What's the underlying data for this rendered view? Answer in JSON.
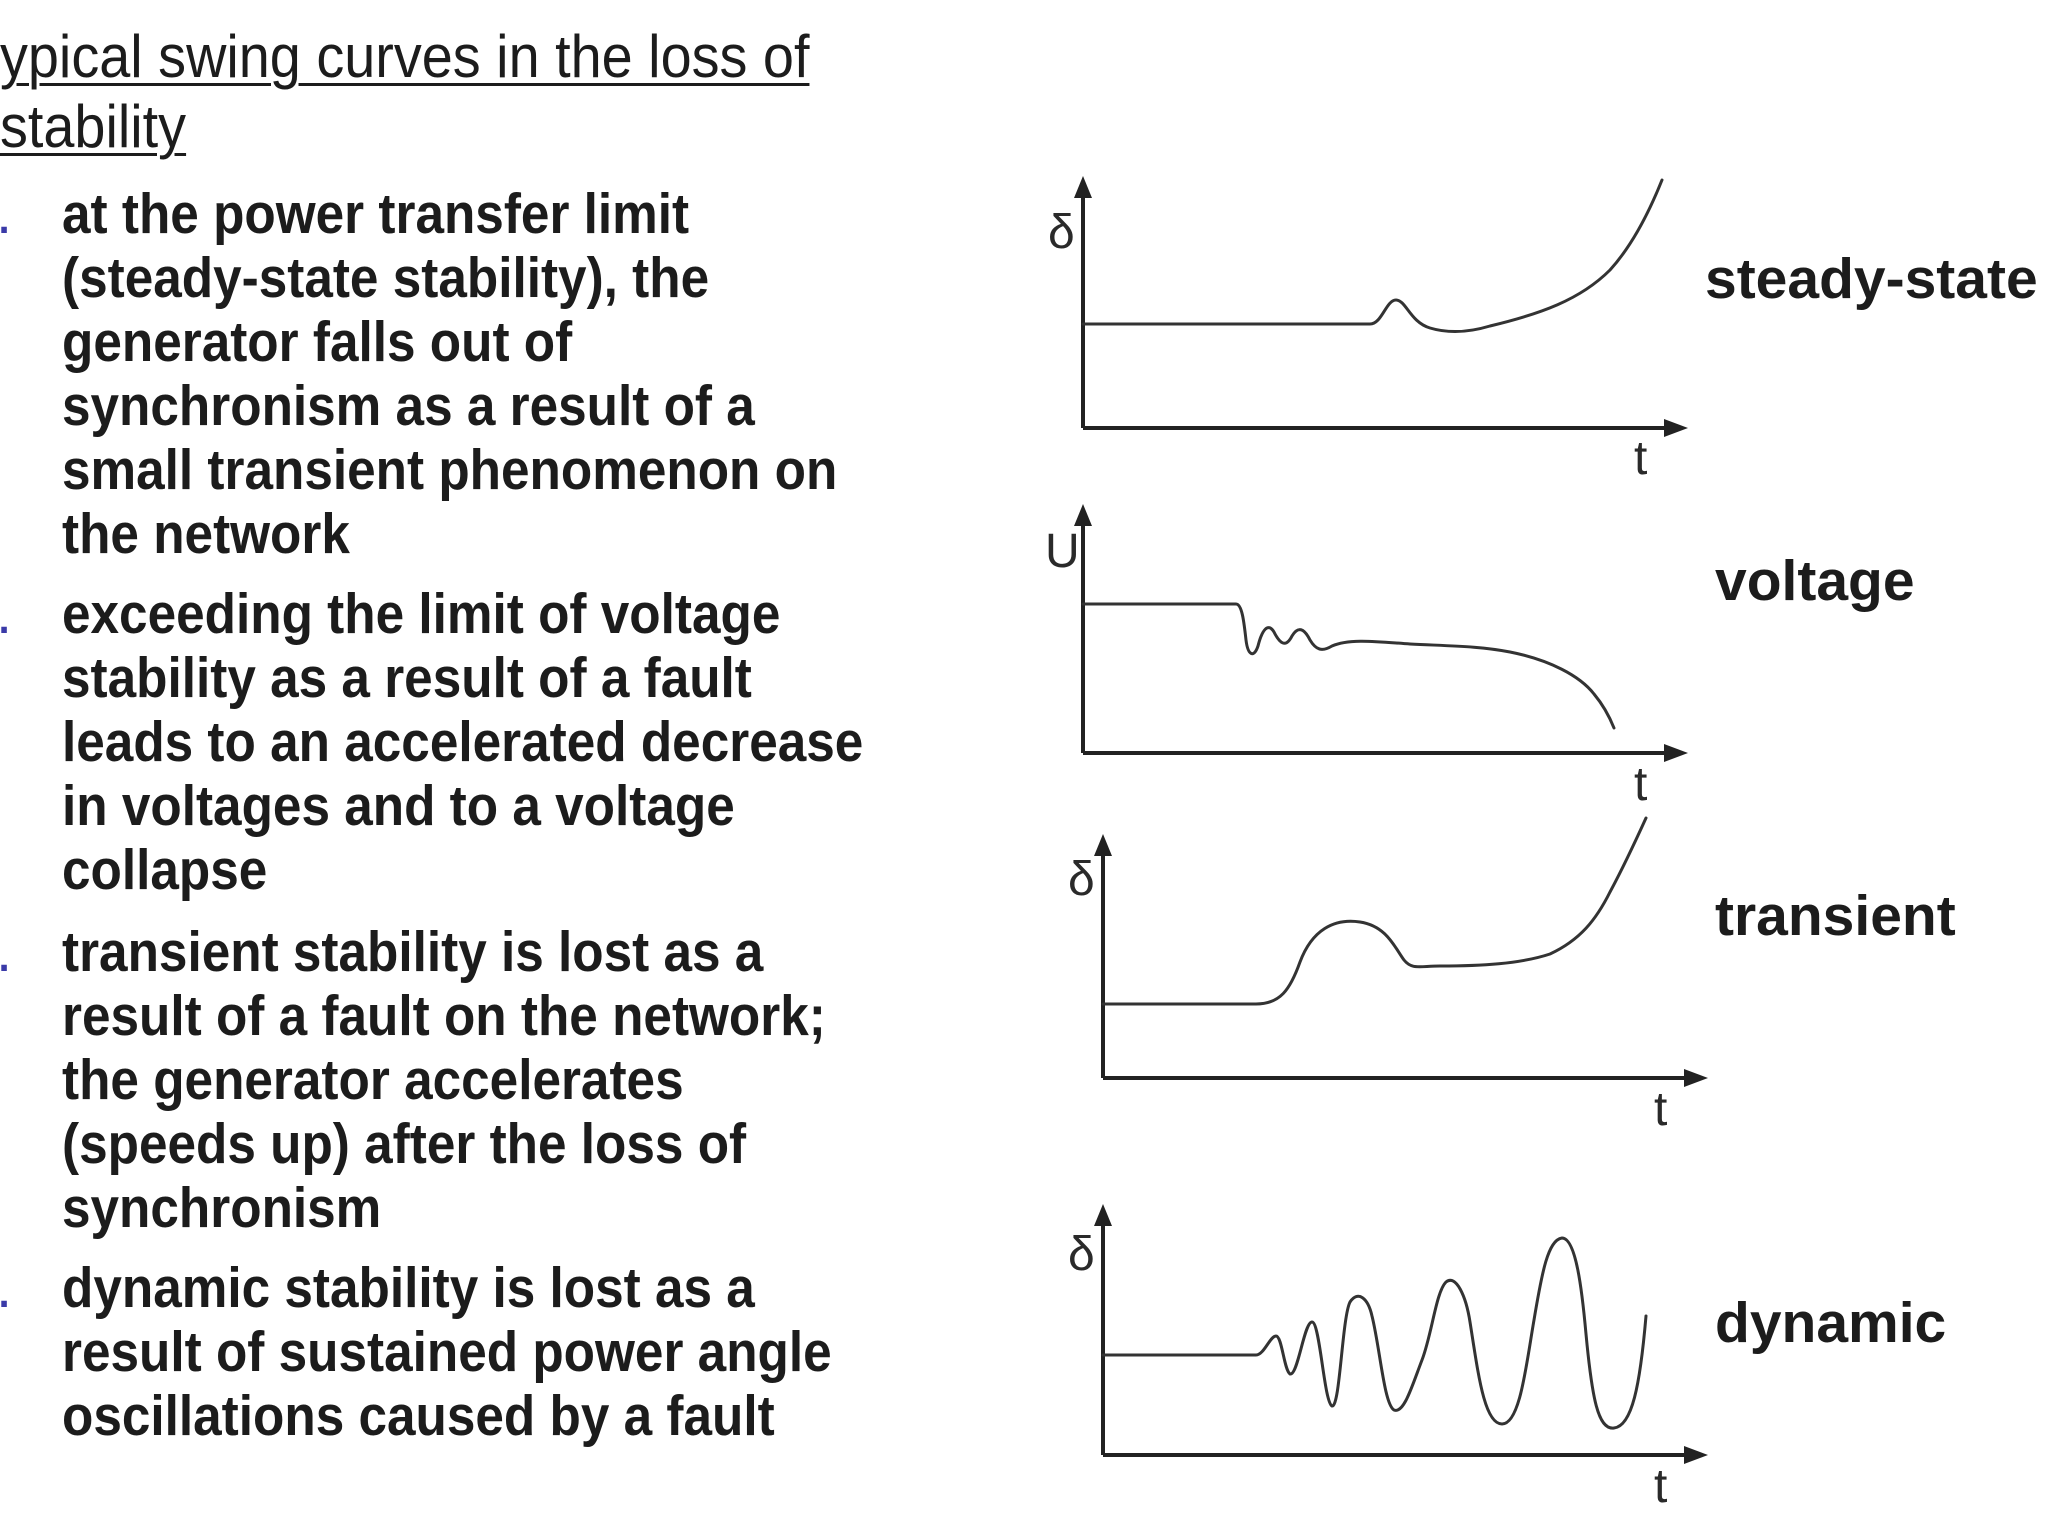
{
  "title": "ypical swing curves in the loss of stability",
  "bullets": [
    {
      "marker": ".",
      "text": "at the power transfer limit\n(steady-state stability), the\ngenerator falls out of\nsynchronism as a result of a\nsmall transient phenomenon on\nthe network"
    },
    {
      "marker": ".",
      "text": "exceeding the limit of voltage\nstability as a result of a fault\nleads to an accelerated decrease\nin voltages and to a voltage\ncollapse"
    },
    {
      "marker": ".",
      "text": "transient stability is lost as a\nresult of a fault on the network;\nthe generator accelerates\n(speeds up) after the loss of\nsynchronism"
    },
    {
      "marker": ".",
      "text": "dynamic stability is lost as a\nresult of sustained power angle\noscillations caused by a fault"
    }
  ],
  "panels": [
    {
      "label": "steady-state",
      "y_axis": "δ",
      "x_axis": "t"
    },
    {
      "label": "voltage",
      "y_axis": "U",
      "x_axis": "t"
    },
    {
      "label": "transient",
      "y_axis": "δ",
      "x_axis": "t"
    },
    {
      "label": "dynamic",
      "y_axis": "δ",
      "x_axis": "t"
    }
  ],
  "colors": {
    "text": "#1c1c1c",
    "marker": "#3a3aa8",
    "lines": "#222222"
  }
}
